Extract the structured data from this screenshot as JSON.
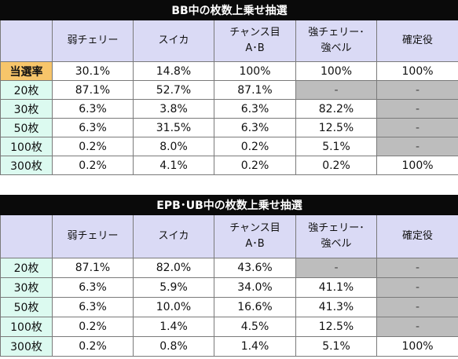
{
  "table1": {
    "title": "BB中の枚数上乗せ抽選",
    "columns": [
      {
        "line1": "弱チェリー",
        "line2": ""
      },
      {
        "line1": "スイカ",
        "line2": ""
      },
      {
        "line1": "チャンス目",
        "line2": "A･B"
      },
      {
        "line1": "強チェリー･",
        "line2": "強ベル"
      },
      {
        "line1": "確定役",
        "line2": ""
      }
    ],
    "rows": [
      {
        "label": "当選率",
        "cells": [
          "30.1%",
          "14.8%",
          "100%",
          "100%",
          "100%"
        ]
      },
      {
        "label": "20枚",
        "cells": [
          "87.1%",
          "52.7%",
          "87.1%",
          "-",
          "-"
        ]
      },
      {
        "label": "30枚",
        "cells": [
          "6.3%",
          "3.8%",
          "6.3%",
          "82.2%",
          "-"
        ]
      },
      {
        "label": "50枚",
        "cells": [
          "6.3%",
          "31.5%",
          "6.3%",
          "12.5%",
          "-"
        ]
      },
      {
        "label": "100枚",
        "cells": [
          "0.2%",
          "8.0%",
          "0.2%",
          "5.1%",
          "-"
        ]
      },
      {
        "label": "300枚",
        "cells": [
          "0.2%",
          "4.1%",
          "0.2%",
          "0.2%",
          "100%"
        ]
      }
    ]
  },
  "table2": {
    "title": "EPB･UB中の枚数上乗せ抽選",
    "columns": [
      {
        "line1": "弱チェリー",
        "line2": ""
      },
      {
        "line1": "スイカ",
        "line2": ""
      },
      {
        "line1": "チャンス目",
        "line2": "A･B"
      },
      {
        "line1": "強チェリー･",
        "line2": "強ベル"
      },
      {
        "line1": "確定役",
        "line2": ""
      }
    ],
    "rows": [
      {
        "label": "20枚",
        "cells": [
          "87.1%",
          "82.0%",
          "43.6%",
          "-",
          "-"
        ]
      },
      {
        "label": "30枚",
        "cells": [
          "6.3%",
          "5.9%",
          "34.0%",
          "41.1%",
          "-"
        ]
      },
      {
        "label": "50枚",
        "cells": [
          "6.3%",
          "10.0%",
          "16.6%",
          "41.3%",
          "-"
        ]
      },
      {
        "label": "100枚",
        "cells": [
          "0.2%",
          "1.4%",
          "4.5%",
          "12.5%",
          "-"
        ]
      },
      {
        "label": "300枚",
        "cells": [
          "0.2%",
          "0.8%",
          "1.4%",
          "5.1%",
          "100%"
        ]
      }
    ]
  },
  "colors": {
    "title_bg": "#0a0a0a",
    "header_bg": "#dadaf5",
    "row_label_bg": "#dcfaf0",
    "rate_label_bg": "#f7c56a",
    "empty_cell_bg": "#bdbdbd"
  }
}
